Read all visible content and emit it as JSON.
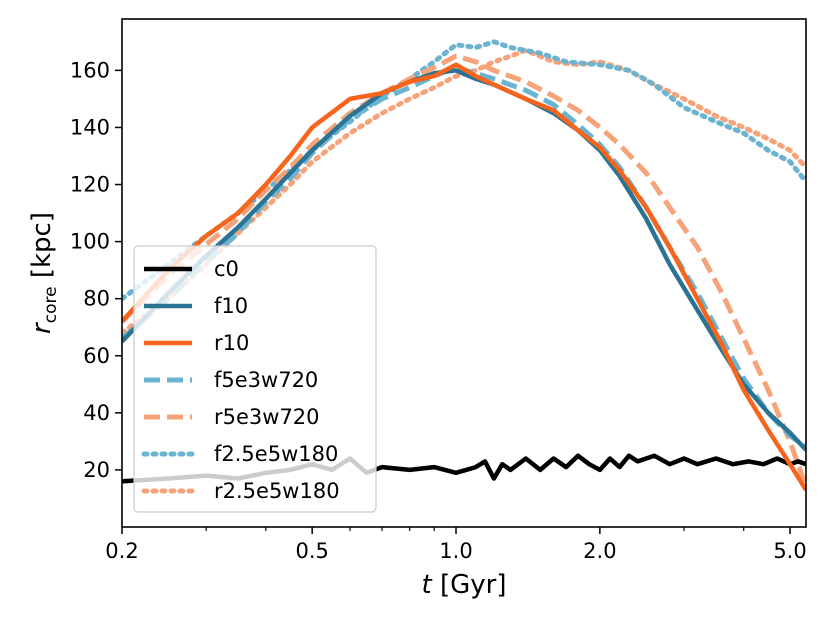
{
  "chart_data": {
    "type": "line",
    "title": "",
    "xlabel_italic": "t",
    "xlabel_rest": " [Gyr]",
    "ylabel_main": "r",
    "ylabel_sub": "core",
    "ylabel_unit": " [kpc]",
    "xscale": "log",
    "xlim": [
      0.2,
      5.4
    ],
    "ylim": [
      0,
      178
    ],
    "xticks": [
      {
        "value": 0.2,
        "label": "0.2"
      },
      {
        "value": 0.5,
        "label": "0.5"
      },
      {
        "value": 1.0,
        "label": "1.0"
      },
      {
        "value": 2.0,
        "label": "2.0"
      },
      {
        "value": 5.0,
        "label": "5.0"
      }
    ],
    "yticks": [
      {
        "value": 20,
        "label": "20"
      },
      {
        "value": 40,
        "label": "40"
      },
      {
        "value": 60,
        "label": "60"
      },
      {
        "value": 80,
        "label": "80"
      },
      {
        "value": 100,
        "label": "100"
      },
      {
        "value": 120,
        "label": "120"
      },
      {
        "value": 140,
        "label": "140"
      },
      {
        "value": 160,
        "label": "160"
      }
    ],
    "grid": false,
    "legend_position": "lower-left",
    "series": [
      {
        "name": "r2.5e5w180",
        "color": "#f7a37a",
        "style": "dotted",
        "x": [
          0.2,
          0.25,
          0.3,
          0.35,
          0.4,
          0.45,
          0.5,
          0.6,
          0.7,
          0.8,
          0.9,
          1.0,
          1.1,
          1.2,
          1.3,
          1.4,
          1.6,
          1.8,
          2.0,
          2.3,
          2.6,
          3.0,
          3.5,
          4.0,
          4.5,
          5.0,
          5.4
        ],
        "y": [
          68,
          80,
          92,
          103,
          112,
          120,
          128,
          138,
          145,
          150,
          154,
          158,
          160,
          163,
          165,
          167,
          163,
          162,
          163,
          160,
          155,
          150,
          144,
          140,
          136,
          132,
          126
        ]
      },
      {
        "name": "f2.5e5w180",
        "color": "#6ab4d2",
        "style": "dotted",
        "x": [
          0.2,
          0.25,
          0.3,
          0.35,
          0.4,
          0.45,
          0.5,
          0.6,
          0.7,
          0.8,
          0.9,
          1.0,
          1.1,
          1.2,
          1.3,
          1.5,
          1.7,
          2.0,
          2.3,
          2.6,
          3.0,
          3.5,
          4.0,
          4.5,
          5.0,
          5.4
        ],
        "y": [
          80,
          92,
          102,
          110,
          118,
          125,
          132,
          142,
          151,
          157,
          163,
          169,
          168,
          170,
          168,
          166,
          163,
          162,
          160,
          155,
          147,
          142,
          138,
          132,
          128,
          121
        ]
      },
      {
        "name": "r5e3w720",
        "color": "#f7a37a",
        "style": "dashed",
        "x": [
          0.2,
          0.25,
          0.3,
          0.35,
          0.4,
          0.45,
          0.5,
          0.6,
          0.7,
          0.8,
          0.9,
          1.0,
          1.1,
          1.2,
          1.4,
          1.6,
          1.8,
          2.0,
          2.2,
          2.5,
          2.8,
          3.2,
          3.6,
          4.0,
          4.5,
          5.0,
          5.4
        ],
        "y": [
          72,
          88,
          99,
          108,
          118,
          126,
          134,
          145,
          152,
          157,
          161,
          165,
          163,
          160,
          156,
          151,
          146,
          140,
          134,
          124,
          112,
          98,
          82,
          66,
          48,
          30,
          14
        ]
      },
      {
        "name": "f5e3w720",
        "color": "#6ab4d2",
        "style": "dashed",
        "x": [
          0.2,
          0.25,
          0.3,
          0.35,
          0.4,
          0.45,
          0.5,
          0.6,
          0.7,
          0.8,
          0.9,
          1.0,
          1.1,
          1.2,
          1.4,
          1.6,
          1.8,
          2.0,
          2.2,
          2.5,
          2.8,
          3.2,
          3.6,
          4.0,
          4.5,
          5.0,
          5.4
        ],
        "y": [
          66,
          80,
          93,
          103,
          114,
          122,
          131,
          143,
          150,
          154,
          158,
          161,
          159,
          157,
          153,
          148,
          141,
          134,
          126,
          112,
          98,
          82,
          66,
          52,
          40,
          32,
          28
        ]
      },
      {
        "name": "c0",
        "color": "#000000",
        "style": "solid",
        "x": [
          0.2,
          0.25,
          0.3,
          0.35,
          0.4,
          0.45,
          0.5,
          0.55,
          0.6,
          0.65,
          0.7,
          0.8,
          0.9,
          1.0,
          1.05,
          1.1,
          1.15,
          1.2,
          1.25,
          1.3,
          1.4,
          1.5,
          1.6,
          1.7,
          1.8,
          1.9,
          2.0,
          2.1,
          2.2,
          2.3,
          2.4,
          2.6,
          2.8,
          3.0,
          3.2,
          3.5,
          3.8,
          4.1,
          4.4,
          4.7,
          5.0,
          5.2,
          5.4
        ],
        "y": [
          16,
          17,
          18,
          17,
          19,
          20,
          22,
          20,
          24,
          19,
          21,
          20,
          21,
          19,
          20,
          21,
          23,
          17,
          22,
          20,
          24,
          20,
          24,
          21,
          25,
          22,
          20,
          24,
          21,
          25,
          23,
          25,
          22,
          24,
          22,
          24,
          22,
          23,
          22,
          24,
          22,
          23,
          22
        ]
      },
      {
        "name": "f10",
        "color": "#2b7393",
        "style": "solid",
        "x": [
          0.2,
          0.25,
          0.3,
          0.35,
          0.4,
          0.45,
          0.5,
          0.6,
          0.7,
          0.8,
          0.9,
          1.0,
          1.1,
          1.2,
          1.4,
          1.6,
          1.8,
          2.0,
          2.2,
          2.5,
          2.8,
          3.2,
          3.6,
          4.0,
          4.5,
          5.0,
          5.4
        ],
        "y": [
          65,
          82,
          95,
          105,
          115,
          124,
          132,
          144,
          152,
          156,
          159,
          160,
          157,
          155,
          150,
          145,
          139,
          132,
          123,
          108,
          92,
          76,
          62,
          50,
          40,
          33,
          27
        ]
      },
      {
        "name": "r10",
        "color": "#f7641a",
        "style": "solid",
        "x": [
          0.2,
          0.25,
          0.3,
          0.35,
          0.4,
          0.45,
          0.5,
          0.6,
          0.7,
          0.8,
          0.9,
          1.0,
          1.1,
          1.2,
          1.4,
          1.6,
          1.8,
          2.0,
          2.2,
          2.5,
          2.8,
          3.2,
          3.6,
          4.0,
          4.5,
          5.0,
          5.4
        ],
        "y": [
          72,
          90,
          102,
          110,
          120,
          130,
          140,
          150,
          152,
          156,
          158,
          162,
          158,
          155,
          150,
          146,
          139,
          133,
          125,
          112,
          98,
          80,
          64,
          48,
          34,
          22,
          13
        ]
      }
    ],
    "legend": [
      {
        "label": "c0",
        "color": "#000000",
        "style": "solid"
      },
      {
        "label": "f10",
        "color": "#2b7393",
        "style": "solid"
      },
      {
        "label": "r10",
        "color": "#f7641a",
        "style": "solid"
      },
      {
        "label": "f5e3w720",
        "color": "#6ab4d2",
        "style": "dashed"
      },
      {
        "label": "r5e3w720",
        "color": "#f7a37a",
        "style": "dashed"
      },
      {
        "label": "f2.5e5w180",
        "color": "#6ab4d2",
        "style": "dotted"
      },
      {
        "label": "r2.5e5w180",
        "color": "#f7a37a",
        "style": "dotted"
      }
    ]
  }
}
